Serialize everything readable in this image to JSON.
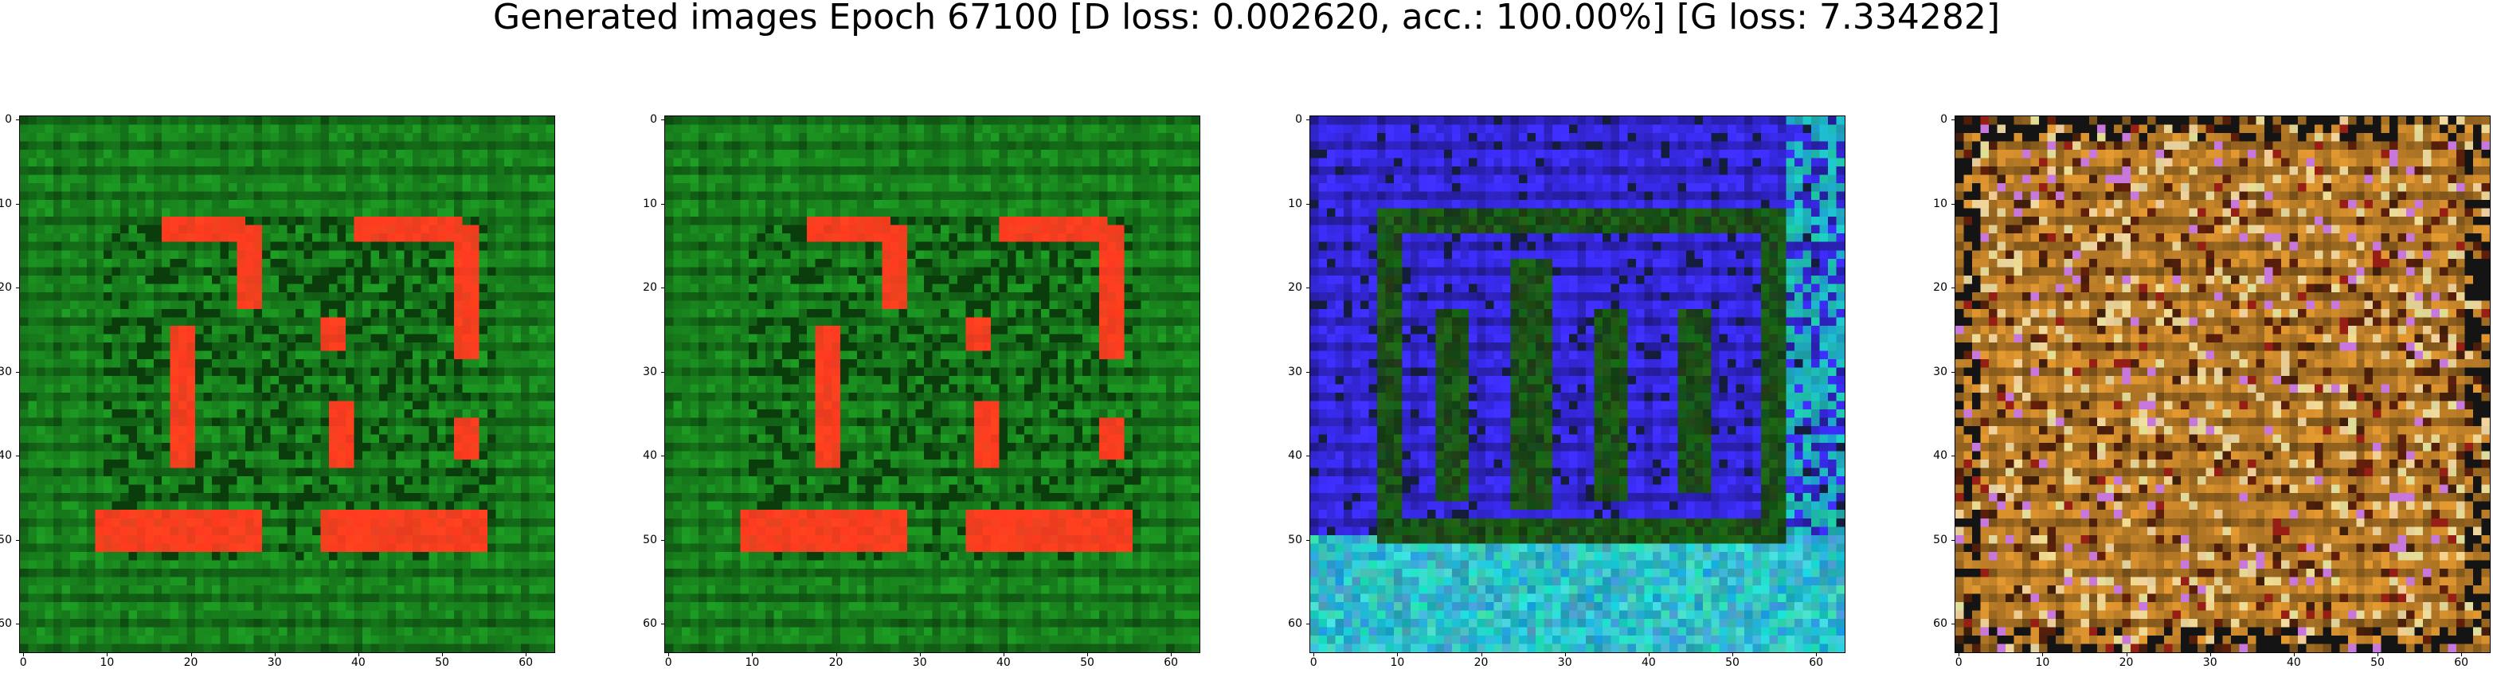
{
  "figure": {
    "title": "Generated images Epoch 67100 [D loss: 0.002620, acc.: 100.00%] [G loss: 7.334282]"
  },
  "axes": {
    "ticks": [
      "0",
      "10",
      "20",
      "30",
      "40",
      "50",
      "60"
    ],
    "tick_values": [
      0,
      10,
      20,
      30,
      40,
      50,
      60
    ],
    "extent": [
      -0.5,
      63.5
    ]
  },
  "panels": [
    {
      "name": "generated-image-1",
      "scheme": "green-red",
      "background": "#1a8a1f",
      "accent": "#ff4020"
    },
    {
      "name": "generated-image-2",
      "scheme": "green-red",
      "background": "#1a8a1f",
      "accent": "#ff4020"
    },
    {
      "name": "generated-image-3",
      "scheme": "blue-dark",
      "background": "#3a2cf2",
      "accent": "#1e5a1a"
    },
    {
      "name": "generated-image-4",
      "scheme": "orange-noise",
      "background": "#c8862a",
      "accent": "#f4e0a0"
    }
  ]
}
